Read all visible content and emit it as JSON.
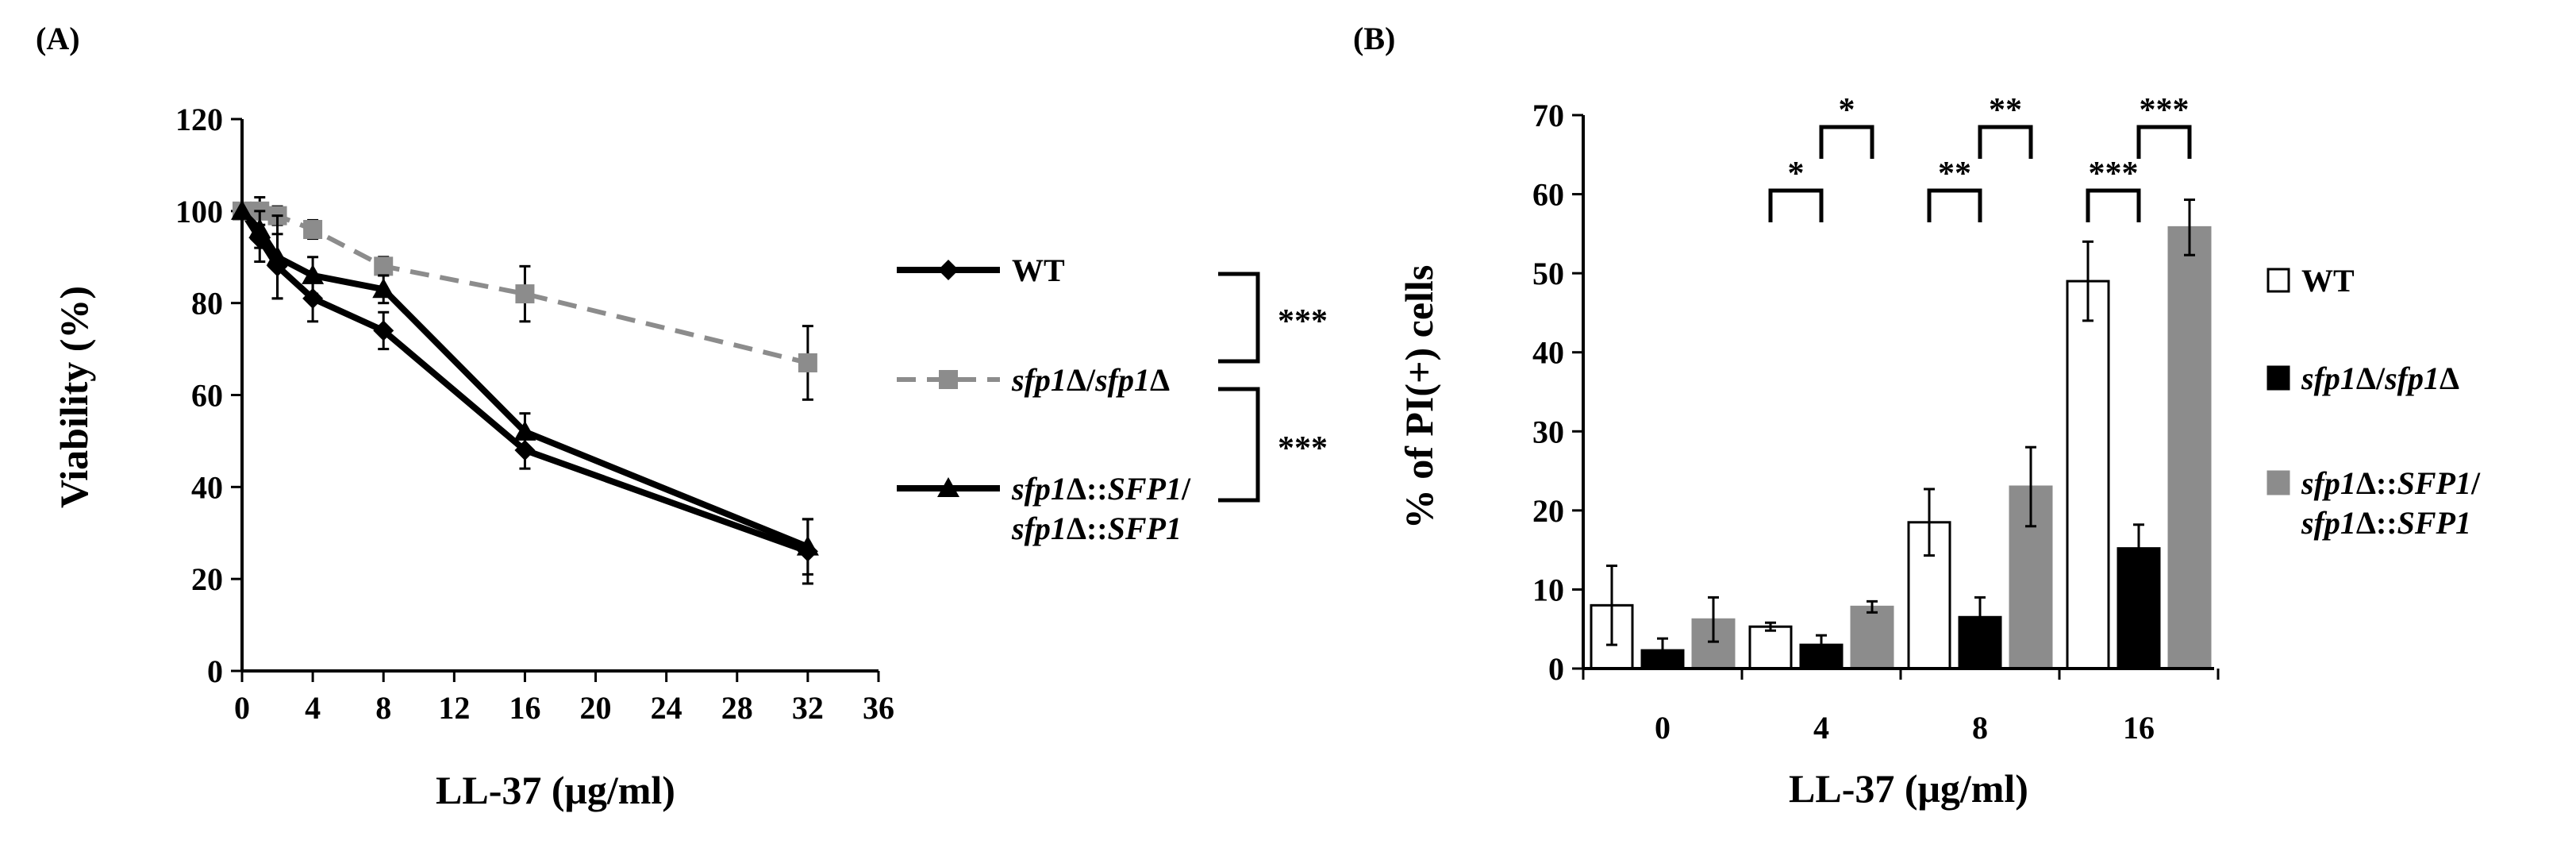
{
  "panels": [
    {
      "label": "(A)",
      "chart_data": {
        "type": "line",
        "xlabel": "LL-37 (μg/ml)",
        "ylabel": "Viability (%)",
        "xlim": [
          0,
          36
        ],
        "ylim": [
          0,
          120
        ],
        "xticks": [
          0,
          4,
          8,
          12,
          16,
          20,
          24,
          28,
          32,
          36
        ],
        "yticks": [
          0,
          20,
          40,
          60,
          80,
          100,
          120
        ],
        "x": [
          0,
          1,
          2,
          4,
          8,
          16,
          32
        ],
        "legend_position": "right",
        "series": [
          {
            "key": "wt",
            "legend_parts": [
              {
                "t": "WT",
                "i": false
              }
            ],
            "color": "#000000",
            "dash": "solid",
            "marker": "diamond",
            "values": [
              100,
              94,
              88,
              81,
              74,
              48,
              26
            ],
            "errors": [
              0,
              5,
              7,
              5,
              4,
              4,
              7
            ]
          },
          {
            "key": "del",
            "legend_parts": [
              {
                "t": "sfp1",
                "i": true
              },
              {
                "t": "Δ/",
                "i": false
              },
              {
                "t": "sfp1",
                "i": true
              },
              {
                "t": "Δ",
                "i": false
              }
            ],
            "color": "#8c8c8c",
            "dash": "dashed",
            "marker": "square",
            "values": [
              100,
              100,
              99,
              96,
              88,
              82,
              67
            ],
            "errors": [
              0,
              3,
              2,
              2,
              2,
              6,
              8
            ]
          },
          {
            "key": "comp",
            "legend_parts": [
              {
                "t": "sfp1",
                "i": true
              },
              {
                "t": "Δ::",
                "i": false
              },
              {
                "t": "SFP1",
                "i": true
              },
              {
                "t": "/",
                "i": false
              }
            ],
            "legend_parts_2": [
              {
                "t": "sfp1",
                "i": true
              },
              {
                "t": "Δ::",
                "i": false
              },
              {
                "t": "SFP1",
                "i": true
              }
            ],
            "color": "#000000",
            "dash": "solid",
            "marker": "triangle",
            "values": [
              100,
              96,
              90,
              86,
              83,
              52,
              27
            ],
            "errors": [
              0,
              4,
              9,
              4,
              3,
              4,
              6
            ]
          }
        ],
        "significance": [
          {
            "between": [
              "wt",
              "del"
            ],
            "label": "***"
          },
          {
            "between": [
              "del",
              "comp"
            ],
            "label": "***"
          }
        ]
      }
    },
    {
      "label": "(B)",
      "chart_data": {
        "type": "bar",
        "xlabel": "LL-37  (μg/ml)",
        "ylabel": "% of PI(+) cells",
        "ylim": [
          0,
          70
        ],
        "yticks": [
          0,
          10,
          20,
          30,
          40,
          50,
          60,
          70
        ],
        "categories": [
          "0",
          "4",
          "8",
          "16"
        ],
        "legend_position": "right",
        "series": [
          {
            "key": "wt",
            "legend_parts": [
              {
                "t": "WT",
                "i": false
              }
            ],
            "fill": "#ffffff",
            "stroke": "#000000",
            "values": [
              8,
              5.3,
              18.5,
              49
            ],
            "errors": [
              5,
              0.5,
              4.2,
              5
            ]
          },
          {
            "key": "del",
            "legend_parts": [
              {
                "t": "sfp1",
                "i": true
              },
              {
                "t": "Δ/",
                "i": false
              },
              {
                "t": "sfp1",
                "i": true
              },
              {
                "t": "Δ",
                "i": false
              }
            ],
            "fill": "#000000",
            "stroke": "#000000",
            "values": [
              2.3,
              3,
              6.5,
              15.2
            ],
            "errors": [
              1.5,
              1.2,
              2.5,
              3
            ]
          },
          {
            "key": "comp",
            "legend_parts": [
              {
                "t": "sfp1",
                "i": true
              },
              {
                "t": "Δ::",
                "i": false
              },
              {
                "t": "SFP1",
                "i": true
              },
              {
                "t": "/",
                "i": false
              }
            ],
            "legend_parts_2": [
              {
                "t": "sfp1",
                "i": true
              },
              {
                "t": "Δ::",
                "i": false
              },
              {
                "t": "SFP1",
                "i": true
              }
            ],
            "fill": "#8c8c8c",
            "stroke": "#8c8c8c",
            "values": [
              6.2,
              7.8,
              23,
              55.8
            ],
            "errors": [
              2.8,
              0.7,
              5,
              3.5
            ]
          }
        ],
        "significance": [
          {
            "category": "4",
            "between": [
              0,
              1
            ],
            "label": "*"
          },
          {
            "category": "4",
            "between": [
              1,
              2
            ],
            "label": "*"
          },
          {
            "category": "8",
            "between": [
              0,
              1
            ],
            "label": "**"
          },
          {
            "category": "8",
            "between": [
              1,
              2
            ],
            "label": "**"
          },
          {
            "category": "16",
            "between": [
              0,
              1
            ],
            "label": "***"
          },
          {
            "category": "16",
            "between": [
              1,
              2
            ],
            "label": "***"
          }
        ]
      }
    }
  ]
}
